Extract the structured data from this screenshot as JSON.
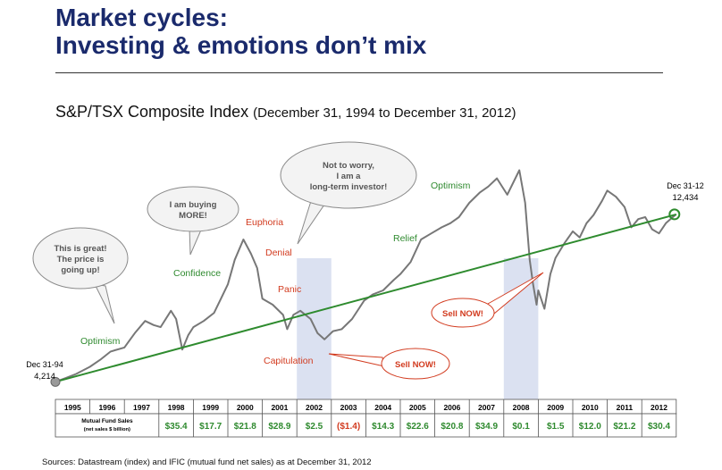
{
  "header": {
    "title_line1": "Market cycles:",
    "title_line2": "Investing & emotions don’t mix"
  },
  "chart_header": {
    "title": "S&P/TSX Composite Index",
    "subtitle": "(December 31, 1994 to December 31, 2012)"
  },
  "footnote": "Sources: Datastream (index) and IFIC (mutual fund net sales) as at December 31, 2012",
  "colors": {
    "line": "#777777",
    "trend": "#2e8b2e",
    "highlight": "#dbe1f1",
    "green_label": "#2f8a2f",
    "red_label": "#d23b1f",
    "title": "#1a2a6c"
  },
  "chart_data": {
    "type": "line",
    "x_range": [
      1995,
      2013
    ],
    "y_range": [
      3000,
      15500
    ],
    "start": {
      "date": "Dec 31-94",
      "value": "4,214"
    },
    "end": {
      "date": "Dec 31-12",
      "value": "12,434"
    },
    "series": [
      {
        "x": [
          1995.0,
          1995.3,
          1995.6,
          1996.0,
          1996.3,
          1996.6,
          1997.0,
          1997.3,
          1997.6,
          1997.85,
          1998.05,
          1998.35,
          1998.5,
          1998.68,
          1998.85,
          1999.0,
          1999.3,
          1999.6,
          1999.8,
          2000.0,
          2000.2,
          2000.45,
          2000.67,
          2000.85,
          2001.0,
          2001.3,
          2001.6,
          2001.72,
          2001.9,
          2002.1,
          2002.4,
          2002.6,
          2002.8,
          2003.05,
          2003.3,
          2003.6,
          2003.95,
          2004.2,
          2004.5,
          2004.8,
          2005.0,
          2005.3,
          2005.6,
          2005.9,
          2006.2,
          2006.45,
          2006.7,
          2007.0,
          2007.3,
          2007.55,
          2007.8,
          2008.1,
          2008.45,
          2008.62,
          2008.75,
          2008.85,
          2008.95,
          2009.0,
          2009.18,
          2009.35,
          2009.5,
          2009.75,
          2010.0,
          2010.2,
          2010.4,
          2010.6,
          2010.85,
          2011.0,
          2011.25,
          2011.5,
          2011.7,
          2011.9,
          2012.1,
          2012.3,
          2012.5,
          2012.7,
          2012.9,
          2013.0
        ],
        "y": [
          4214,
          4400,
          4600,
          4950,
          5300,
          5700,
          5900,
          6600,
          7200,
          7000,
          6900,
          7700,
          7300,
          5800,
          6500,
          6900,
          7200,
          7600,
          8300,
          9000,
          10200,
          11200,
          10500,
          9800,
          8300,
          8000,
          7500,
          6800,
          7500,
          7700,
          7300,
          6600,
          6300,
          6700,
          6800,
          7300,
          8200,
          8500,
          8700,
          9200,
          9500,
          10100,
          11200,
          11500,
          11800,
          12000,
          12300,
          13000,
          13500,
          13800,
          14200,
          13400,
          14600,
          13000,
          10200,
          9000,
          8000,
          8700,
          7800,
          9500,
          10300,
          11000,
          11600,
          11300,
          12000,
          12400,
          13100,
          13600,
          13300,
          12800,
          11800,
          12200,
          12300,
          11700,
          11500,
          12000,
          12300,
          12434
        ]
      }
    ],
    "trend": {
      "start": {
        "x": 1995.0,
        "y": 4214
      },
      "end": {
        "x": 2013.0,
        "y": 12434
      }
    },
    "shaded_years": [
      [
        2002.0,
        2003.0
      ],
      [
        2008.0,
        2009.0
      ]
    ],
    "annotations": [
      {
        "id": "optimism-1",
        "text": "Optimism",
        "color": "green"
      },
      {
        "id": "confidence",
        "text": "Confidence",
        "color": "green"
      },
      {
        "id": "euphoria",
        "text": "Euphoria",
        "color": "red"
      },
      {
        "id": "denial",
        "text": "Denial",
        "color": "red"
      },
      {
        "id": "panic",
        "text": "Panic",
        "color": "red"
      },
      {
        "id": "capitulation",
        "text": "Capitulation",
        "color": "red"
      },
      {
        "id": "relief",
        "text": "Relief",
        "color": "green"
      },
      {
        "id": "optimism-2",
        "text": "Optimism",
        "color": "green"
      }
    ],
    "bubbles": [
      {
        "id": "this-is-great",
        "lines": [
          "This is great!",
          "The price is",
          "going up!"
        ]
      },
      {
        "id": "buying-more",
        "lines": [
          "I am buying",
          "MORE!"
        ]
      },
      {
        "id": "long-term",
        "lines": [
          "Not to worry,",
          "I am a",
          "long-term investor!"
        ]
      },
      {
        "id": "sell-now-1",
        "lines": [
          "Sell NOW!"
        ]
      },
      {
        "id": "sell-now-2",
        "lines": [
          "Sell NOW!"
        ]
      }
    ],
    "table": {
      "row_label_line1": "Mutual Fund Sales",
      "row_label_line2": "(net sales $ billion)",
      "years": [
        "1995",
        "1996",
        "1997",
        "1998",
        "1999",
        "2000",
        "2001",
        "2002",
        "2003",
        "2004",
        "2005",
        "2006",
        "2007",
        "2008",
        "2009",
        "2010",
        "2011",
        "2012"
      ],
      "values": [
        "",
        "",
        "",
        "$35.4",
        "$17.7",
        "$21.8",
        "$28.9",
        "$2.5",
        "($1.4)",
        "$14.3",
        "$22.6",
        "$20.8",
        "$34.9",
        "$0.1",
        "$1.5",
        "$12.0",
        "$21.2",
        "$30.4"
      ],
      "negative": [
        "($1.4)"
      ]
    }
  }
}
